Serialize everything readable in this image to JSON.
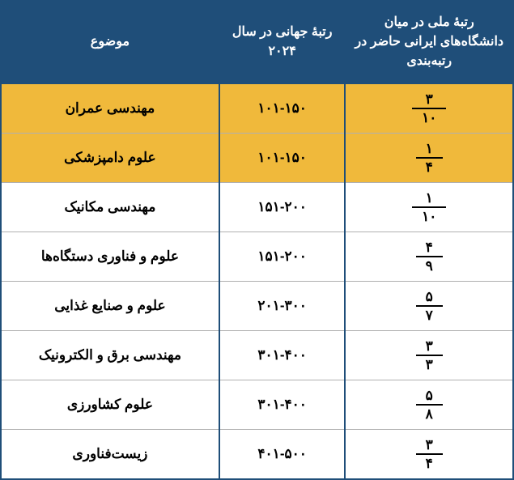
{
  "table": {
    "columns": [
      {
        "label": "رتبهٔ ملی در میان دانشگاه‌های ایرانی حاضر در رتبه‌بندی"
      },
      {
        "label": "رتبهٔ جهانی در سال ۲۰۲۴"
      },
      {
        "label": "موضوع"
      }
    ],
    "header_bg": "#1f4e79",
    "header_color": "#ffffff",
    "highlight_bg": "#f0b93b",
    "border_color": "#1f4e79",
    "rows": [
      {
        "subject": "مهندسی عمران",
        "world_rank": "۱۰۱-۱۵۰",
        "num": "۳",
        "den": "۱۰",
        "highlight": true
      },
      {
        "subject": "علوم دامپزشکی",
        "world_rank": "۱۰۱-۱۵۰",
        "num": "۱",
        "den": "۴",
        "highlight": true
      },
      {
        "subject": "مهندسی مکانیک",
        "world_rank": "۱۵۱-۲۰۰",
        "num": "۱",
        "den": "۱۰",
        "highlight": false
      },
      {
        "subject": "علوم و فناوری دستگاه‌ها",
        "world_rank": "۱۵۱-۲۰۰",
        "num": "۴",
        "den": "۹",
        "highlight": false
      },
      {
        "subject": "علوم و صنایع غذایی",
        "world_rank": "۲۰۱-۳۰۰",
        "num": "۵",
        "den": "۷",
        "highlight": false
      },
      {
        "subject": "مهندسی برق و الکترونیک",
        "world_rank": "۳۰۱-۴۰۰",
        "num": "۳",
        "den": "۳",
        "highlight": false
      },
      {
        "subject": "علوم کشاورزی",
        "world_rank": "۳۰۱-۴۰۰",
        "num": "۵",
        "den": "۸",
        "highlight": false
      },
      {
        "subject": "زیست‌فناوری",
        "world_rank": "۴۰۱-۵۰۰",
        "num": "۳",
        "den": "۴",
        "highlight": false
      }
    ]
  }
}
